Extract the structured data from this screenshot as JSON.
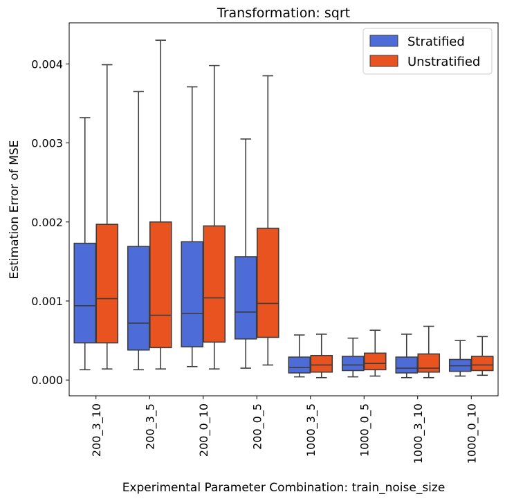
{
  "chart_data": {
    "type": "box",
    "title": "Transformation: sqrt",
    "xlabel": "Experimental Parameter Combination: train_noise_size",
    "ylabel": "Estimation Error of MSE",
    "ylim": [
      -0.0002,
      0.00452
    ],
    "yticks": [
      0.0,
      0.001,
      0.002,
      0.003,
      0.004
    ],
    "ytick_labels": [
      "0.000",
      "0.001",
      "0.002",
      "0.003",
      "0.004"
    ],
    "grid": false,
    "legend_position": "top-right",
    "categories": [
      "200_3_10",
      "200_3_5",
      "200_0_10",
      "200_0_5",
      "1000_3_5",
      "1000_0_5",
      "1000_3_10",
      "1000_0_10"
    ],
    "series": [
      {
        "name": "Stratified",
        "color": "#4E6CD8",
        "boxes": [
          {
            "whislo": 0.00013,
            "q1": 0.00047,
            "med": 0.00094,
            "q3": 0.00173,
            "whishi": 0.00332
          },
          {
            "whislo": 0.00013,
            "q1": 0.00038,
            "med": 0.00072,
            "q3": 0.00169,
            "whishi": 0.00365
          },
          {
            "whislo": 0.00017,
            "q1": 0.00042,
            "med": 0.00084,
            "q3": 0.00175,
            "whishi": 0.00371
          },
          {
            "whislo": 0.00015,
            "q1": 0.00052,
            "med": 0.00086,
            "q3": 0.00156,
            "whishi": 0.00305
          },
          {
            "whislo": 4e-05,
            "q1": 9e-05,
            "med": 0.00016,
            "q3": 0.00029,
            "whishi": 0.00057
          },
          {
            "whislo": 4e-05,
            "q1": 0.00012,
            "med": 0.00019,
            "q3": 0.0003,
            "whishi": 0.00053
          },
          {
            "whislo": 3e-05,
            "q1": 9e-05,
            "med": 0.00015,
            "q3": 0.00029,
            "whishi": 0.00058
          },
          {
            "whislo": 5e-05,
            "q1": 0.00011,
            "med": 0.00018,
            "q3": 0.00026,
            "whishi": 0.0005
          }
        ]
      },
      {
        "name": "Unstratified",
        "color": "#E8531F",
        "boxes": [
          {
            "whislo": 0.00014,
            "q1": 0.00047,
            "med": 0.00103,
            "q3": 0.00197,
            "whishi": 0.00399
          },
          {
            "whislo": 0.00014,
            "q1": 0.00041,
            "med": 0.00082,
            "q3": 0.002,
            "whishi": 0.0043
          },
          {
            "whislo": 0.00014,
            "q1": 0.00048,
            "med": 0.00104,
            "q3": 0.00195,
            "whishi": 0.00398
          },
          {
            "whislo": 0.00019,
            "q1": 0.00054,
            "med": 0.00097,
            "q3": 0.00192,
            "whishi": 0.00385
          },
          {
            "whislo": 3e-05,
            "q1": 0.0001,
            "med": 0.00019,
            "q3": 0.00031,
            "whishi": 0.00058
          },
          {
            "whislo": 5e-05,
            "q1": 0.00013,
            "med": 0.00021,
            "q3": 0.00034,
            "whishi": 0.00063
          },
          {
            "whislo": 3e-05,
            "q1": 0.0001,
            "med": 0.00015,
            "q3": 0.00033,
            "whishi": 0.00068
          },
          {
            "whislo": 6e-05,
            "q1": 0.00012,
            "med": 0.00019,
            "q3": 0.0003,
            "whishi": 0.00055
          }
        ]
      }
    ]
  }
}
